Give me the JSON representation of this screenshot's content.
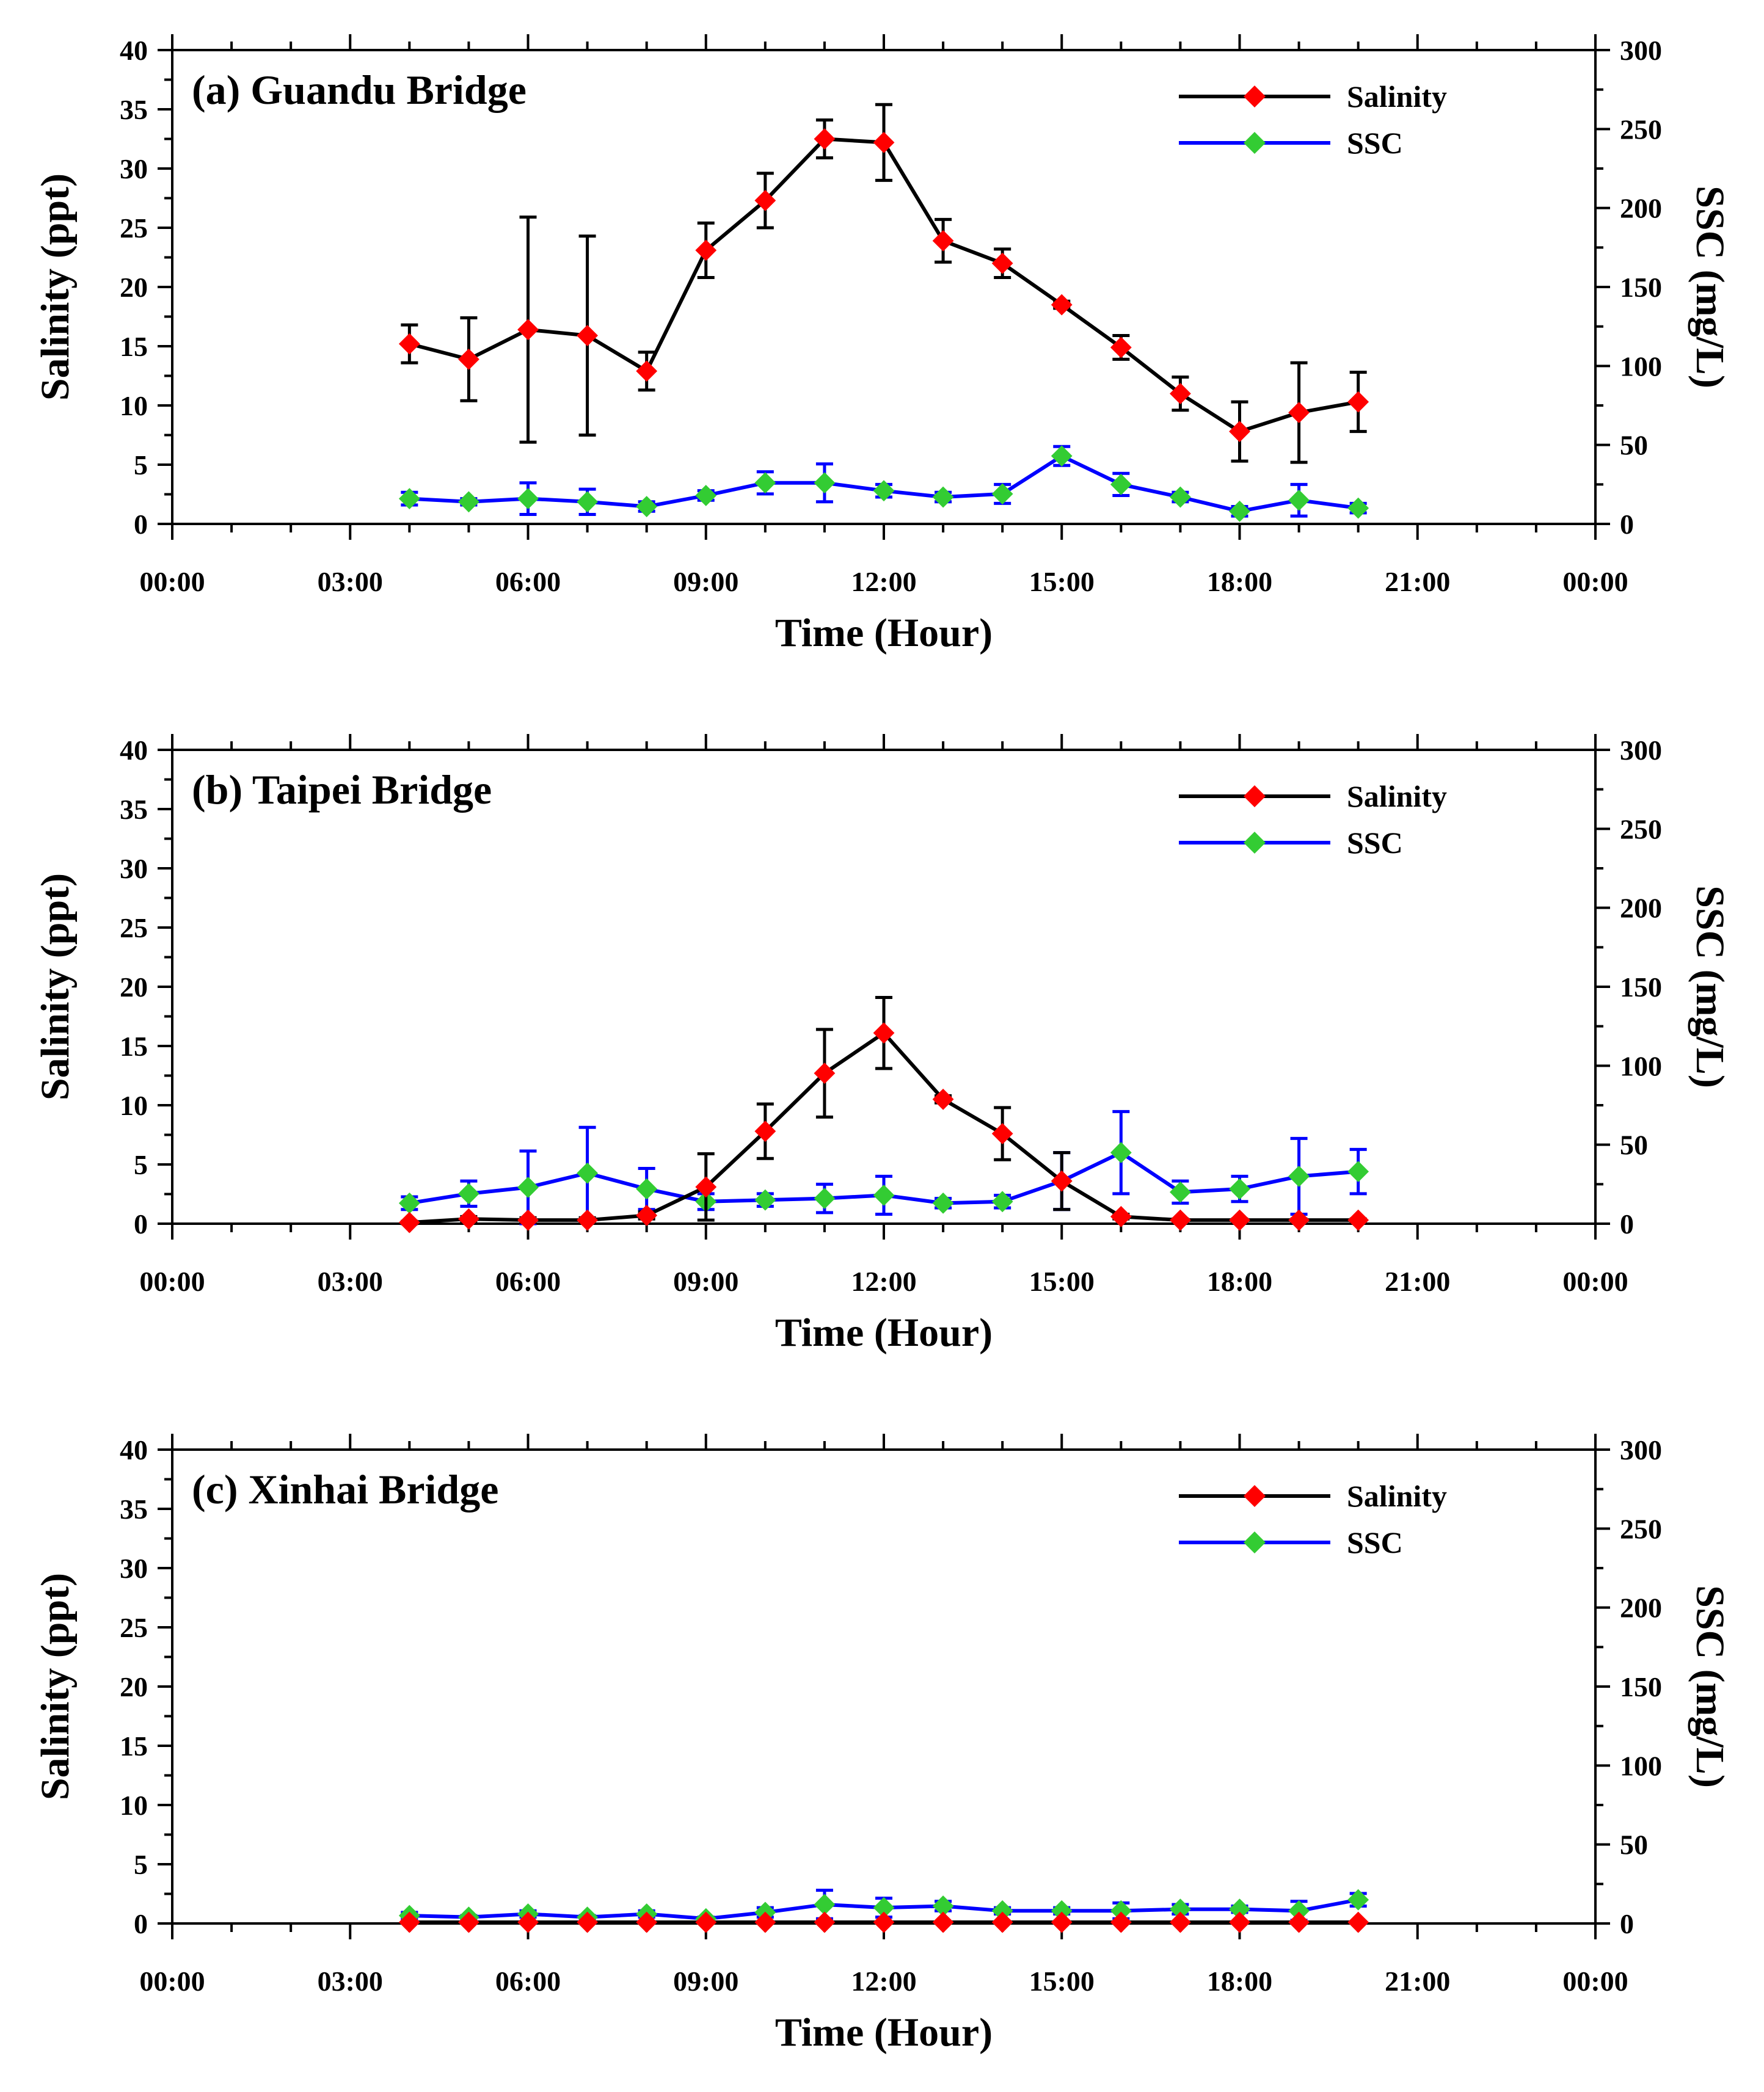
{
  "chart_data": [
    {
      "type": "line",
      "title": "(a) Guandu Bridge",
      "xlabel": "Time (Hour)",
      "ylabel": "Salinity (ppt)",
      "y2label": "SSC (mg/L)",
      "x_tick_labels": [
        "00:00",
        "03:00",
        "06:00",
        "09:00",
        "12:00",
        "15:00",
        "18:00",
        "21:00",
        "00:00"
      ],
      "y_ticks": [
        0,
        5,
        10,
        15,
        20,
        25,
        30,
        35,
        40
      ],
      "y2_ticks": [
        0,
        50,
        100,
        150,
        200,
        250,
        300
      ],
      "xlim": [
        0,
        24
      ],
      "ylim": [
        0,
        40
      ],
      "y2lim": [
        0,
        300
      ],
      "x": [
        4,
        5,
        6,
        7,
        8,
        9,
        10,
        11,
        12,
        13,
        14,
        15,
        16,
        17,
        18,
        19,
        20
      ],
      "legend_position": "top-right",
      "series": [
        {
          "name": "Salinity",
          "axis": "left",
          "line_color": "#000000",
          "marker_color": "#ff0000",
          "values": [
            15.2,
            13.9,
            16.4,
            15.9,
            12.9,
            23.1,
            27.3,
            32.5,
            32.2,
            23.9,
            22.0,
            18.5,
            14.9,
            11.0,
            7.8,
            9.4,
            10.3
          ],
          "errors": [
            1.6,
            3.5,
            9.5,
            8.4,
            1.6,
            2.3,
            2.3,
            1.6,
            3.2,
            1.8,
            1.2,
            0.3,
            1.0,
            1.4,
            2.5,
            4.2,
            2.5
          ]
        },
        {
          "name": "SSC",
          "axis": "right",
          "line_color": "#0000ff",
          "marker_color": "#33cc33",
          "values": [
            16,
            14,
            16,
            14,
            11,
            18,
            26,
            26,
            21,
            17,
            19,
            43,
            25,
            17,
            8,
            15,
            10
          ],
          "errors": [
            4,
            2,
            10,
            8,
            3,
            3,
            7,
            12,
            4,
            3,
            6,
            6,
            7,
            3,
            3,
            10,
            3
          ]
        }
      ]
    },
    {
      "type": "line",
      "title": "(b) Taipei Bridge",
      "xlabel": "Time (Hour)",
      "ylabel": "Salinity (ppt)",
      "y2label": "SSC (mg/L)",
      "x_tick_labels": [
        "00:00",
        "03:00",
        "06:00",
        "09:00",
        "12:00",
        "15:00",
        "18:00",
        "21:00",
        "00:00"
      ],
      "y_ticks": [
        0,
        5,
        10,
        15,
        20,
        25,
        30,
        35,
        40
      ],
      "y2_ticks": [
        0,
        50,
        100,
        150,
        200,
        250,
        300
      ],
      "xlim": [
        0,
        24
      ],
      "ylim": [
        0,
        40
      ],
      "y2lim": [
        0,
        300
      ],
      "x": [
        4,
        5,
        6,
        7,
        8,
        9,
        10,
        11,
        12,
        13,
        14,
        15,
        16,
        17,
        18,
        19,
        20
      ],
      "legend_position": "top-right",
      "series": [
        {
          "name": "Salinity",
          "axis": "left",
          "line_color": "#000000",
          "marker_color": "#ff0000",
          "values": [
            0.1,
            0.4,
            0.3,
            0.3,
            0.7,
            3.1,
            7.8,
            12.7,
            16.1,
            10.5,
            7.6,
            3.6,
            0.6,
            0.3,
            0.3,
            0.3,
            0.3
          ],
          "errors": [
            0.1,
            0.2,
            0.2,
            0.2,
            0.3,
            2.8,
            2.3,
            3.7,
            3.0,
            0.3,
            2.2,
            2.4,
            0.2,
            0.1,
            0.1,
            0.1,
            0.1
          ]
        },
        {
          "name": "SSC",
          "axis": "right",
          "line_color": "#0000ff",
          "marker_color": "#33cc33",
          "values": [
            13,
            19,
            23,
            32,
            22,
            14,
            15,
            16,
            18,
            13,
            14,
            27,
            45,
            20,
            22,
            30,
            33
          ],
          "errors": [
            4,
            8,
            23,
            29,
            13,
            5,
            4,
            9,
            12,
            3,
            4,
            18,
            26,
            7,
            8,
            24,
            14
          ]
        }
      ]
    },
    {
      "type": "line",
      "title": "(c) Xinhai Bridge",
      "xlabel": "Time (Hour)",
      "ylabel": "Salinity (ppt)",
      "y2label": "SSC (mg/L)",
      "x_tick_labels": [
        "00:00",
        "03:00",
        "06:00",
        "09:00",
        "12:00",
        "15:00",
        "18:00",
        "21:00",
        "00:00"
      ],
      "y_ticks": [
        0,
        5,
        10,
        15,
        20,
        25,
        30,
        35,
        40
      ],
      "y2_ticks": [
        0,
        50,
        100,
        150,
        200,
        250,
        300
      ],
      "xlim": [
        0,
        24
      ],
      "ylim": [
        0,
        40
      ],
      "y2lim": [
        0,
        300
      ],
      "x": [
        4,
        5,
        6,
        7,
        8,
        9,
        10,
        11,
        12,
        13,
        14,
        15,
        16,
        17,
        18,
        19,
        20
      ],
      "legend_position": "top-right",
      "series": [
        {
          "name": "Salinity",
          "axis": "left",
          "line_color": "#000000",
          "marker_color": "#ff0000",
          "values": [
            0.1,
            0.1,
            0.1,
            0.1,
            0.1,
            0.1,
            0.1,
            0.1,
            0.1,
            0.1,
            0.1,
            0.1,
            0.1,
            0.1,
            0.1,
            0.1,
            0.1
          ],
          "errors": [
            0.05,
            0.05,
            0.05,
            0.05,
            0.05,
            0.05,
            0.05,
            0.05,
            0.05,
            0.05,
            0.05,
            0.05,
            0.05,
            0.05,
            0.05,
            0.05,
            0.05
          ]
        },
        {
          "name": "SSC",
          "axis": "right",
          "line_color": "#0000ff",
          "marker_color": "#33cc33",
          "values": [
            5,
            4,
            6,
            4,
            6,
            3,
            7,
            12,
            10,
            11,
            8,
            8,
            8,
            9,
            9,
            8,
            15
          ],
          "errors": [
            2,
            1,
            2,
            1,
            2,
            1,
            3,
            9,
            6,
            3,
            2,
            2,
            5,
            3,
            2,
            6,
            4
          ]
        }
      ]
    }
  ]
}
